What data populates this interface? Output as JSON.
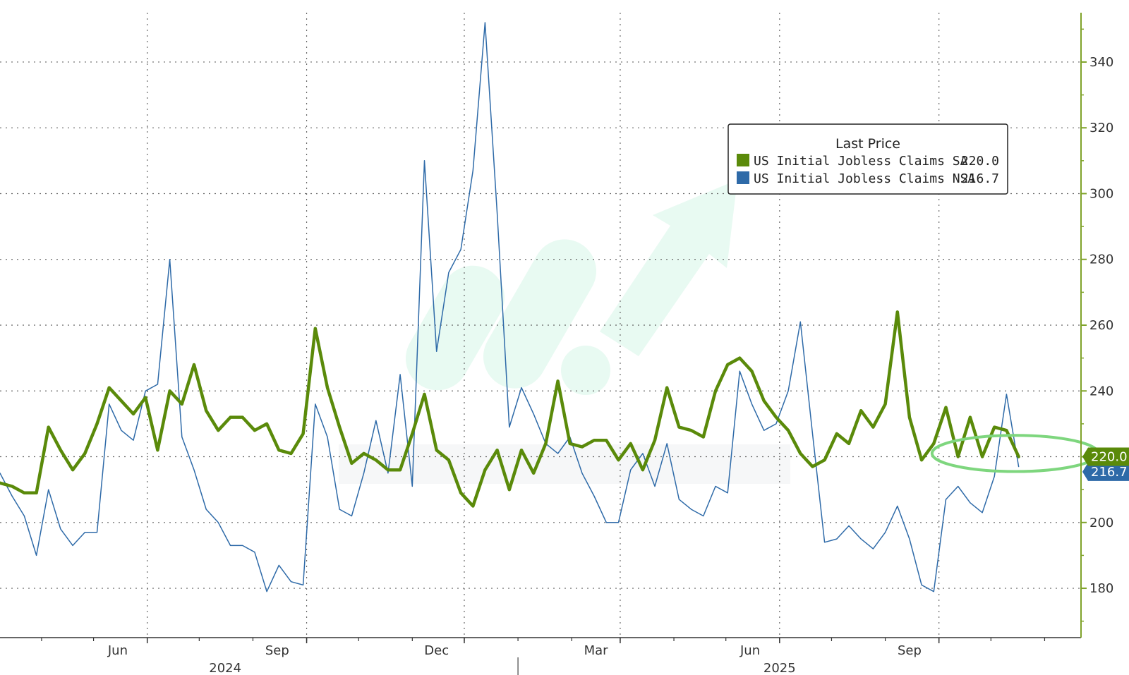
{
  "chart_data": {
    "type": "line",
    "legend": {
      "title": "Last Price",
      "position": "top-right",
      "entries": [
        {
          "label": "US Initial Jobless Claims SA",
          "value": "220.0",
          "color": "#5a8a0a"
        },
        {
          "label": "US Initial Jobless Claims NSA",
          "value": "216.7",
          "color": "#2e6aa8"
        }
      ]
    },
    "y_axis": {
      "position": "right",
      "range": [
        165,
        355
      ],
      "ticks": [
        {
          "value": 180,
          "label": "180"
        },
        {
          "value": 200,
          "label": "200"
        },
        {
          "value": 220,
          "label": "220"
        },
        {
          "value": 240,
          "label": "240"
        },
        {
          "value": 260,
          "label": "260"
        },
        {
          "value": 280,
          "label": "280"
        },
        {
          "value": 300,
          "label": "300"
        },
        {
          "value": 320,
          "label": "320"
        },
        {
          "value": 340,
          "label": "340"
        }
      ],
      "color": "#7fa32a"
    },
    "x_axis": {
      "range": [
        "2024-03-08",
        "2025-11-22"
      ],
      "month_ticks": [
        {
          "date": "2024-06-01",
          "label": "Jun"
        },
        {
          "date": "2024-09-01",
          "label": "Sep"
        },
        {
          "date": "2024-12-01",
          "label": "Dec"
        },
        {
          "date": "2025-03-01",
          "label": "Mar"
        },
        {
          "date": "2025-06-01",
          "label": "Jun"
        },
        {
          "date": "2025-09-01",
          "label": "Sep"
        }
      ],
      "year_labels": [
        {
          "label": "2024",
          "date": "2024-07-16"
        },
        {
          "label": "2025",
          "date": "2025-06-01"
        }
      ],
      "year_separator": "2025-01-01"
    },
    "grid": true,
    "last_value_tags": [
      {
        "series": "US Initial Jobless Claims SA",
        "label": "220.0",
        "value": 220.0,
        "color": "#5a8a0a"
      },
      {
        "series": "US Initial Jobless Claims NSA",
        "label": "216.7",
        "value": 216.7,
        "color": "#2e6aa8"
      }
    ],
    "annotation": {
      "shape": "ellipse",
      "color": "#7ed67e",
      "center": [
        "2025-10-15",
        221
      ],
      "span_days": 48,
      "span_value": 11
    },
    "series": [
      {
        "name": "US Initial Jobless Claims SA",
        "color": "#5a8a0a",
        "points": [
          [
            "2024-03-08",
            212
          ],
          [
            "2024-03-15",
            211
          ],
          [
            "2024-03-22",
            209
          ],
          [
            "2024-03-29",
            209
          ],
          [
            "2024-04-05",
            229
          ],
          [
            "2024-04-12",
            222
          ],
          [
            "2024-04-19",
            216
          ],
          [
            "2024-04-26",
            221
          ],
          [
            "2024-05-03",
            230
          ],
          [
            "2024-05-10",
            241
          ],
          [
            "2024-05-17",
            237
          ],
          [
            "2024-05-24",
            233
          ],
          [
            "2024-05-31",
            238
          ],
          [
            "2024-06-07",
            222
          ],
          [
            "2024-06-14",
            240
          ],
          [
            "2024-06-21",
            236
          ],
          [
            "2024-06-28",
            248
          ],
          [
            "2024-07-05",
            234
          ],
          [
            "2024-07-12",
            228
          ],
          [
            "2024-07-19",
            232
          ],
          [
            "2024-07-26",
            232
          ],
          [
            "2024-08-02",
            228
          ],
          [
            "2024-08-09",
            230
          ],
          [
            "2024-08-16",
            222
          ],
          [
            "2024-08-23",
            221
          ],
          [
            "2024-08-30",
            227
          ],
          [
            "2024-09-06",
            259
          ],
          [
            "2024-09-13",
            241
          ],
          [
            "2024-09-20",
            229
          ],
          [
            "2024-09-27",
            218
          ],
          [
            "2024-10-04",
            221
          ],
          [
            "2024-10-11",
            219
          ],
          [
            "2024-10-18",
            216
          ],
          [
            "2024-10-25",
            216
          ],
          [
            "2024-11-01",
            227
          ],
          [
            "2024-11-08",
            239
          ],
          [
            "2024-11-15",
            222
          ],
          [
            "2024-11-22",
            219
          ],
          [
            "2024-11-29",
            209
          ],
          [
            "2024-12-06",
            205
          ],
          [
            "2024-12-13",
            216
          ],
          [
            "2024-12-20",
            222
          ],
          [
            "2024-12-27",
            210
          ],
          [
            "2025-01-03",
            222
          ],
          [
            "2025-01-10",
            215
          ],
          [
            "2025-01-17",
            224
          ],
          [
            "2025-01-24",
            243
          ],
          [
            "2025-01-31",
            224
          ],
          [
            "2025-02-07",
            223
          ],
          [
            "2025-02-14",
            225
          ],
          [
            "2025-02-21",
            225
          ],
          [
            "2025-02-28",
            219
          ],
          [
            "2025-03-07",
            224
          ],
          [
            "2025-03-14",
            216
          ],
          [
            "2025-03-21",
            225
          ],
          [
            "2025-03-28",
            241
          ],
          [
            "2025-04-04",
            229
          ],
          [
            "2025-04-11",
            228
          ],
          [
            "2025-04-18",
            226
          ],
          [
            "2025-04-25",
            240
          ],
          [
            "2025-05-02",
            248
          ],
          [
            "2025-05-09",
            250
          ],
          [
            "2025-05-16",
            246
          ],
          [
            "2025-05-23",
            237
          ],
          [
            "2025-05-30",
            232
          ],
          [
            "2025-06-06",
            228
          ],
          [
            "2025-06-13",
            221
          ],
          [
            "2025-06-20",
            217
          ],
          [
            "2025-06-27",
            219
          ],
          [
            "2025-07-04",
            227
          ],
          [
            "2025-07-11",
            224
          ],
          [
            "2025-07-18",
            234
          ],
          [
            "2025-07-25",
            229
          ],
          [
            "2025-08-01",
            236
          ],
          [
            "2025-08-08",
            264
          ],
          [
            "2025-08-15",
            232
          ],
          [
            "2025-08-22",
            219
          ],
          [
            "2025-08-29",
            224
          ],
          [
            "2025-09-05",
            235
          ],
          [
            "2025-09-12",
            220
          ],
          [
            "2025-09-19",
            232
          ],
          [
            "2025-09-26",
            220
          ],
          [
            "2025-10-03",
            229
          ],
          [
            "2025-10-10",
            228
          ],
          [
            "2025-10-17",
            220
          ]
        ]
      },
      {
        "name": "US Initial Jobless Claims NSA",
        "color": "#2e6aa8",
        "points": [
          [
            "2024-03-08",
            215
          ],
          [
            "2024-03-15",
            208
          ],
          [
            "2024-03-22",
            202
          ],
          [
            "2024-03-29",
            190
          ],
          [
            "2024-04-05",
            210
          ],
          [
            "2024-04-12",
            198
          ],
          [
            "2024-04-19",
            193
          ],
          [
            "2024-04-26",
            197
          ],
          [
            "2024-05-03",
            197
          ],
          [
            "2024-05-10",
            236
          ],
          [
            "2024-05-17",
            228
          ],
          [
            "2024-05-24",
            225
          ],
          [
            "2024-05-31",
            240
          ],
          [
            "2024-06-07",
            242
          ],
          [
            "2024-06-14",
            280
          ],
          [
            "2024-06-21",
            226
          ],
          [
            "2024-06-28",
            216
          ],
          [
            "2024-07-05",
            204
          ],
          [
            "2024-07-12",
            200
          ],
          [
            "2024-07-19",
            193
          ],
          [
            "2024-07-26",
            193
          ],
          [
            "2024-08-02",
            191
          ],
          [
            "2024-08-09",
            179
          ],
          [
            "2024-08-16",
            187
          ],
          [
            "2024-08-23",
            182
          ],
          [
            "2024-08-30",
            181
          ],
          [
            "2024-09-06",
            236
          ],
          [
            "2024-09-13",
            226
          ],
          [
            "2024-09-20",
            204
          ],
          [
            "2024-09-27",
            202
          ],
          [
            "2024-10-04",
            215
          ],
          [
            "2024-10-11",
            231
          ],
          [
            "2024-10-18",
            215
          ],
          [
            "2024-10-25",
            245
          ],
          [
            "2024-11-01",
            211
          ],
          [
            "2024-11-08",
            310
          ],
          [
            "2024-11-15",
            252
          ],
          [
            "2024-11-22",
            276
          ],
          [
            "2024-11-29",
            283
          ],
          [
            "2024-12-06",
            307
          ],
          [
            "2024-12-13",
            352
          ],
          [
            "2024-12-20",
            294
          ],
          [
            "2024-12-27",
            229
          ],
          [
            "2025-01-03",
            241
          ],
          [
            "2025-01-10",
            233
          ],
          [
            "2025-01-17",
            224
          ],
          [
            "2025-01-24",
            221
          ],
          [
            "2025-01-31",
            226
          ],
          [
            "2025-02-07",
            215
          ],
          [
            "2025-02-14",
            208
          ],
          [
            "2025-02-21",
            200
          ],
          [
            "2025-02-28",
            200
          ],
          [
            "2025-03-07",
            216
          ],
          [
            "2025-03-14",
            221
          ],
          [
            "2025-03-21",
            211
          ],
          [
            "2025-03-28",
            224
          ],
          [
            "2025-04-04",
            207
          ],
          [
            "2025-04-11",
            204
          ],
          [
            "2025-04-18",
            202
          ],
          [
            "2025-04-25",
            211
          ],
          [
            "2025-05-02",
            209
          ],
          [
            "2025-05-09",
            246
          ],
          [
            "2025-05-16",
            236
          ],
          [
            "2025-05-23",
            228
          ],
          [
            "2025-05-30",
            230
          ],
          [
            "2025-06-06",
            240
          ],
          [
            "2025-06-13",
            261
          ],
          [
            "2025-06-20",
            227
          ],
          [
            "2025-06-27",
            194
          ],
          [
            "2025-07-04",
            195
          ],
          [
            "2025-07-11",
            199
          ],
          [
            "2025-07-18",
            195
          ],
          [
            "2025-07-25",
            192
          ],
          [
            "2025-08-01",
            197
          ],
          [
            "2025-08-08",
            205
          ],
          [
            "2025-08-15",
            195
          ],
          [
            "2025-08-22",
            181
          ],
          [
            "2025-08-29",
            179
          ],
          [
            "2025-09-05",
            207
          ],
          [
            "2025-09-12",
            211
          ],
          [
            "2025-09-19",
            206
          ],
          [
            "2025-09-26",
            203
          ],
          [
            "2025-10-03",
            214
          ],
          [
            "2025-10-10",
            239
          ],
          [
            "2025-10-17",
            217
          ]
        ]
      }
    ]
  }
}
